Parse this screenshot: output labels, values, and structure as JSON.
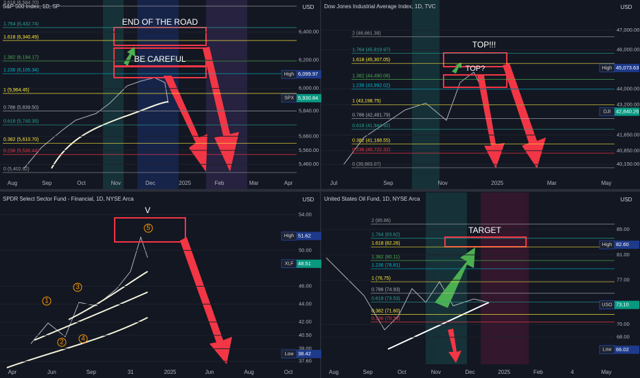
{
  "panels": [
    {
      "title": "S&P 500 Index, 1D, SP",
      "currency": "USD",
      "yticks": [
        {
          "value": 6400,
          "label": "6,400.00"
        },
        {
          "value": 6200,
          "label": "6,200.00"
        },
        {
          "value": 6000,
          "label": "6,000.00"
        },
        {
          "value": 5840,
          "label": "5,840.00"
        },
        {
          "value": 5660,
          "label": "5,660.00"
        },
        {
          "value": 5560,
          "label": "5,560.00"
        },
        {
          "value": 5460,
          "label": "5,460.00"
        }
      ],
      "badges": [
        {
          "tag": "High",
          "value": 6099.97,
          "label": "6,099.97"
        },
        {
          "tag": "SPX",
          "value": 5930.84,
          "label": "5,930.84"
        }
      ],
      "fibs": [
        {
          "value": 6584.7,
          "label": "3.618 (6,584.70)"
        },
        {
          "value": 6432.74,
          "label": "1.764 (6,432.74)"
        },
        {
          "value": 6340.49,
          "label": "1.618 (6,340.49)"
        },
        {
          "value": 6194.17,
          "label": "1.382 (6,194.17)"
        },
        {
          "value": 6105.34,
          "label": "1.236 (6,105.34)"
        },
        {
          "value": 5964.45,
          "label": "1 (5,964.45)"
        },
        {
          "value": 5839.5,
          "label": "0.786 (5,839.50)"
        },
        {
          "value": 5740.35,
          "label": "0.618 (5,740.35)"
        },
        {
          "value": 5610.7,
          "label": "0.382 (5,610.70)"
        },
        {
          "value": 5530.44,
          "label": "0.236 (5,530.44)"
        },
        {
          "value": 5402.62,
          "label": "0 (5,402.62)"
        }
      ],
      "xlabels": [
        "Aug",
        "Sep",
        "Oct",
        "Nov",
        "Dec",
        "2025",
        "Feb",
        "Mar",
        "Apr"
      ],
      "annotations": [
        "END OF THE ROAD",
        "BE CAREFUL"
      ]
    },
    {
      "title": "Dow Jones Industrial Average Index, 1D, TVC",
      "currency": "USD",
      "yticks": [
        {
          "value": 47000,
          "label": "47,000.00"
        },
        {
          "value": 46000,
          "label": "46,000.00"
        },
        {
          "value": 44000,
          "label": "44,000.00"
        },
        {
          "value": 43200,
          "label": "43,200.00"
        },
        {
          "value": 41650,
          "label": "41,650.00"
        },
        {
          "value": 40850,
          "label": "40,850.00"
        },
        {
          "value": 40150,
          "label": "40,150.00"
        }
      ],
      "badges": [
        {
          "tag": "High",
          "value": 45073.63,
          "label": "45,073.63"
        },
        {
          "tag": "DJI",
          "value": 42840.26,
          "label": "42,840.26"
        }
      ],
      "fibs": [
        {
          "value": 46661.38,
          "label": "2 (46,661.38)"
        },
        {
          "value": 45819.97,
          "label": "1.764 (45,819.97)"
        },
        {
          "value": 45307.05,
          "label": "1.618 (45,307.05)"
        },
        {
          "value": 44490.06,
          "label": "1.382 (44,490.06)"
        },
        {
          "value": 43992.02,
          "label": "1.236 (43,992.02)"
        },
        {
          "value": 43198.75,
          "label": "1 (43,198.75)"
        },
        {
          "value": 42491.79,
          "label": "0.786 (42,491.79)"
        },
        {
          "value": 41944.92,
          "label": "0.618 (41,944.92)"
        },
        {
          "value": 41188.55,
          "label": "0.382 (41,188.55)"
        },
        {
          "value": 40722.32,
          "label": "0.236 (40,722.32)"
        },
        {
          "value": 39983.07,
          "label": "0 (39,983.07)"
        }
      ],
      "xlabels": [
        "Jul",
        "Sep",
        "Nov",
        "2025",
        "Mar",
        "May"
      ],
      "annotations": [
        "TOP!!!",
        "TOP?"
      ]
    },
    {
      "title": "SPDR Select Sector Fund - Financial, 1D, NYSE Arca",
      "currency": "USD",
      "yticks": [
        {
          "value": 54,
          "label": "54.00"
        },
        {
          "value": 50,
          "label": "50.00"
        },
        {
          "value": 46,
          "label": "46.00"
        },
        {
          "value": 44,
          "label": "44.00"
        },
        {
          "value": 42,
          "label": "42.00"
        },
        {
          "value": 40.5,
          "label": "40.50"
        },
        {
          "value": 39,
          "label": "39.00"
        },
        {
          "value": 37.6,
          "label": "37.60"
        }
      ],
      "badges": [
        {
          "tag": "High",
          "value": 51.62,
          "label": "51.62"
        },
        {
          "tag": "XLF",
          "value": 48.51,
          "label": "48.51"
        },
        {
          "tag": "Low",
          "value": 38.42,
          "label": "38.42"
        }
      ],
      "fibs": [],
      "xlabels": [
        "Apr",
        "Jun",
        "Sep",
        "31",
        "2025",
        "Jun",
        "Aug",
        "Oct"
      ],
      "annotations": [
        "V",
        "5",
        "3",
        "1",
        "2",
        "4"
      ]
    },
    {
      "title": "United States Oil Fund, 1D, NYSE Arca",
      "currency": "USD",
      "yticks": [
        {
          "value": 85,
          "label": "85.00"
        },
        {
          "value": 81,
          "label": "81.00"
        },
        {
          "value": 77,
          "label": "77.00"
        },
        {
          "value": 70,
          "label": "70.00"
        },
        {
          "value": 68,
          "label": "68.00"
        }
      ],
      "badges": [
        {
          "tag": "High",
          "value": 82.6,
          "label": "82.60"
        },
        {
          "tag": "USO",
          "value": 73.1,
          "label": "73.10"
        },
        {
          "tag": "Low",
          "value": 66.02,
          "label": "66.02"
        }
      ],
      "fibs": [
        {
          "value": 85.86,
          "label": "2 (85.86)"
        },
        {
          "value": 83.62,
          "label": "1.764 (83.62)"
        },
        {
          "value": 82.26,
          "label": "1.618 (82.26)"
        },
        {
          "value": 80.11,
          "label": "1.382 (80.11)"
        },
        {
          "value": 78.81,
          "label": "1.236 (78.81)"
        },
        {
          "value": 76.75,
          "label": "1 (76.75)"
        },
        {
          "value": 74.93,
          "label": "0.786 (74.93)"
        },
        {
          "value": 73.53,
          "label": "0.618 (73.53)"
        },
        {
          "value": 71.6,
          "label": "0.382 (71.60)"
        },
        {
          "value": 70.39,
          "label": "0.236 (70.39)"
        }
      ],
      "xlabels": [
        "Aug",
        "Sep",
        "Oct",
        "Nov",
        "Dec",
        "2025",
        "Feb",
        "4",
        "May"
      ],
      "annotations": [
        "TARGET"
      ]
    }
  ]
}
